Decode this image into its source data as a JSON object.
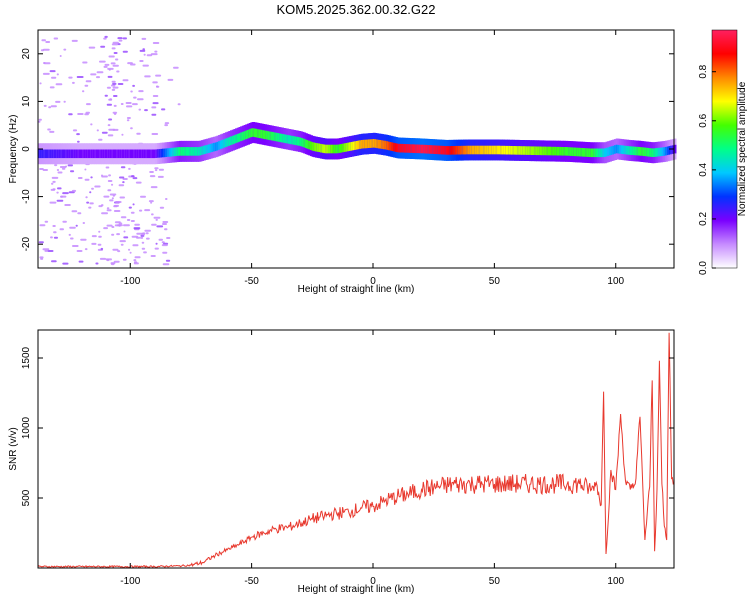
{
  "figure": {
    "title": "KOM5.2025.362.00.32.G22"
  },
  "chart_data": [
    {
      "type": "heatmap",
      "xlabel": "Height of straight line (km)",
      "ylabel": "Frequency (Hz)",
      "xlim": [
        -138,
        124
      ],
      "ylim": [
        -25,
        25
      ],
      "x_ticks": [
        -100,
        -50,
        0,
        50,
        100
      ],
      "y_ticks": [
        -20,
        -10,
        0,
        10,
        20
      ],
      "colorbar": {
        "label": "Normalized spectral amplitude",
        "range": [
          0,
          0.97
        ],
        "ticks": [
          "0.0",
          "0.2",
          "0.4",
          "0.6",
          "0.8"
        ],
        "tick_values": [
          0.0,
          0.2,
          0.4,
          0.6,
          0.8
        ],
        "stops": [
          "#ffffff",
          "#c68bff",
          "#7a00ff",
          "#0033ff",
          "#00c8ff",
          "#00ff88",
          "#44ff00",
          "#ffff00",
          "#ff8800",
          "#ff0000",
          "#ff2060"
        ]
      },
      "ridge": {
        "x": [
          -138,
          -120,
          -100,
          -90,
          -80,
          -72,
          -65,
          -60,
          -55,
          -50,
          -45,
          -40,
          -35,
          -30,
          -25,
          -20,
          -15,
          -10,
          -5,
          0,
          5,
          10,
          20,
          30,
          40,
          50,
          60,
          70,
          80,
          90,
          95,
          100,
          105,
          110,
          115,
          120,
          124
        ],
        "freq": [
          -1,
          -1,
          -1,
          -1,
          -0.5,
          -0.5,
          0.5,
          1.5,
          2.5,
          3.5,
          3,
          2.5,
          2,
          1.5,
          0.5,
          0,
          0,
          0.5,
          1,
          1.2,
          0.8,
          0.2,
          0,
          -0.3,
          -0.2,
          -0.2,
          -0.3,
          -0.4,
          -0.5,
          -0.8,
          -0.8,
          0,
          -0.3,
          -0.5,
          -0.8,
          -0.5,
          0
        ],
        "amplitude": [
          0.25,
          0.2,
          0.2,
          0.2,
          0.5,
          0.45,
          0.35,
          0.45,
          0.5,
          0.55,
          0.55,
          0.5,
          0.45,
          0.5,
          0.6,
          0.65,
          0.55,
          0.65,
          0.75,
          0.75,
          0.8,
          0.9,
          0.95,
          0.9,
          0.75,
          0.7,
          0.65,
          0.6,
          0.55,
          0.55,
          0.4,
          0.35,
          0.45,
          0.55,
          0.5,
          0.35,
          0.2
        ]
      }
    },
    {
      "type": "line",
      "xlabel": "Height of straight line (km)",
      "ylabel": "SNR (v/v)",
      "xlim": [
        -138,
        124
      ],
      "ylim": [
        0,
        1700
      ],
      "x_ticks": [
        -100,
        -50,
        0,
        50,
        100
      ],
      "y_ticks": [
        500,
        1000,
        1500
      ],
      "series": [
        {
          "color": "#e8392e",
          "x": [
            -138,
            -120,
            -100,
            -90,
            -80,
            -75,
            -70,
            -65,
            -60,
            -55,
            -50,
            -45,
            -40,
            -35,
            -30,
            -25,
            -20,
            -15,
            -10,
            -5,
            0,
            5,
            10,
            15,
            20,
            25,
            30,
            35,
            40,
            45,
            50,
            55,
            60,
            65,
            70,
            75,
            80,
            85,
            90,
            92,
            94,
            95,
            96,
            98,
            100,
            102,
            104,
            106,
            108,
            110,
            112,
            114,
            115,
            116,
            117,
            118,
            119,
            120,
            121,
            122,
            123,
            124
          ],
          "y": [
            10,
            10,
            10,
            10,
            15,
            20,
            40,
            90,
            130,
            170,
            220,
            250,
            280,
            290,
            320,
            350,
            370,
            390,
            400,
            430,
            440,
            480,
            510,
            530,
            560,
            575,
            590,
            600,
            600,
            600,
            600,
            600,
            600,
            600,
            600,
            600,
            600,
            600,
            560,
            610,
            450,
            1260,
            100,
            700,
            560,
            1100,
            620,
            560,
            600,
            1080,
            200,
            580,
            1340,
            120,
            560,
            1480,
            600,
            300,
            200,
            1680,
            640,
            600
          ]
        }
      ]
    }
  ]
}
